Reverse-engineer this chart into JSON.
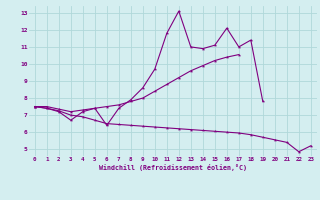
{
  "x": [
    0,
    1,
    2,
    3,
    4,
    5,
    6,
    7,
    8,
    9,
    10,
    11,
    12,
    13,
    14,
    15,
    16,
    17,
    18,
    19,
    20,
    21,
    22,
    23
  ],
  "line_zigzag": [
    7.5,
    7.4,
    7.2,
    6.7,
    7.2,
    7.4,
    6.4,
    7.4,
    7.9,
    8.6,
    9.7,
    11.8,
    13.1,
    11.0,
    10.9,
    11.1,
    12.1,
    11.0,
    11.4,
    7.8,
    null,
    null,
    null,
    null
  ],
  "line_upper": [
    7.5,
    7.5,
    7.35,
    7.2,
    7.3,
    7.4,
    7.5,
    7.6,
    7.8,
    8.0,
    8.4,
    8.8,
    9.2,
    9.6,
    9.9,
    10.2,
    10.4,
    10.55,
    null,
    null,
    null,
    null,
    null,
    null
  ],
  "line_lower": [
    7.5,
    7.4,
    7.25,
    7.0,
    6.9,
    6.7,
    6.5,
    6.45,
    6.4,
    6.35,
    6.3,
    6.25,
    6.2,
    6.15,
    6.1,
    6.05,
    6.0,
    5.95,
    5.85,
    5.7,
    5.55,
    5.4,
    4.85,
    5.2
  ],
  "line_color": "#800080",
  "bg_color": "#d4eef0",
  "grid_color": "#b0d8da",
  "xlabel": "Windchill (Refroidissement éolien,°C)",
  "ylim": [
    4.6,
    13.4
  ],
  "xlim": [
    -0.5,
    23.5
  ],
  "yticks": [
    5,
    6,
    7,
    8,
    9,
    10,
    11,
    12,
    13
  ],
  "xticks": [
    0,
    1,
    2,
    3,
    4,
    5,
    6,
    7,
    8,
    9,
    10,
    11,
    12,
    13,
    14,
    15,
    16,
    17,
    18,
    19,
    20,
    21,
    22,
    23
  ]
}
